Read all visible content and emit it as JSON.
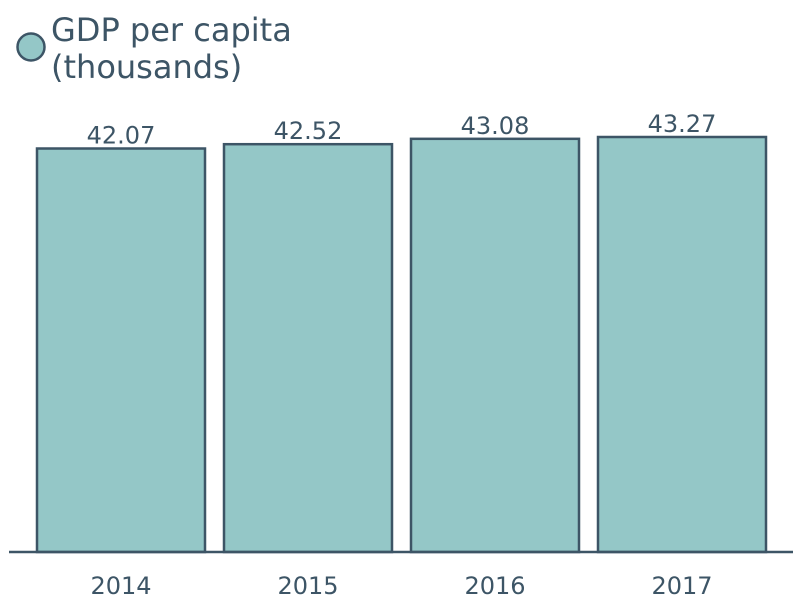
{
  "colors": {
    "bar_fill": "#94c7c7",
    "bar_stroke": "#3d5566",
    "text": "#3d5566",
    "background": "#ffffff"
  },
  "chart_data": {
    "type": "bar",
    "categories": [
      "2014",
      "2015",
      "2016",
      "2017"
    ],
    "series": [
      {
        "name": "GDP per capita (thousands)",
        "values": [
          42.07,
          42.52,
          43.08,
          43.27
        ]
      }
    ],
    "data_labels": [
      "42.07",
      "42.52",
      "43.08",
      "43.27"
    ],
    "title": "",
    "xlabel": "",
    "ylabel": "",
    "ylim": [
      0,
      43.27
    ],
    "grid": false,
    "legend": {
      "placement": "top-left",
      "lines": [
        "GDP per capita",
        "(thousands)"
      ]
    }
  }
}
